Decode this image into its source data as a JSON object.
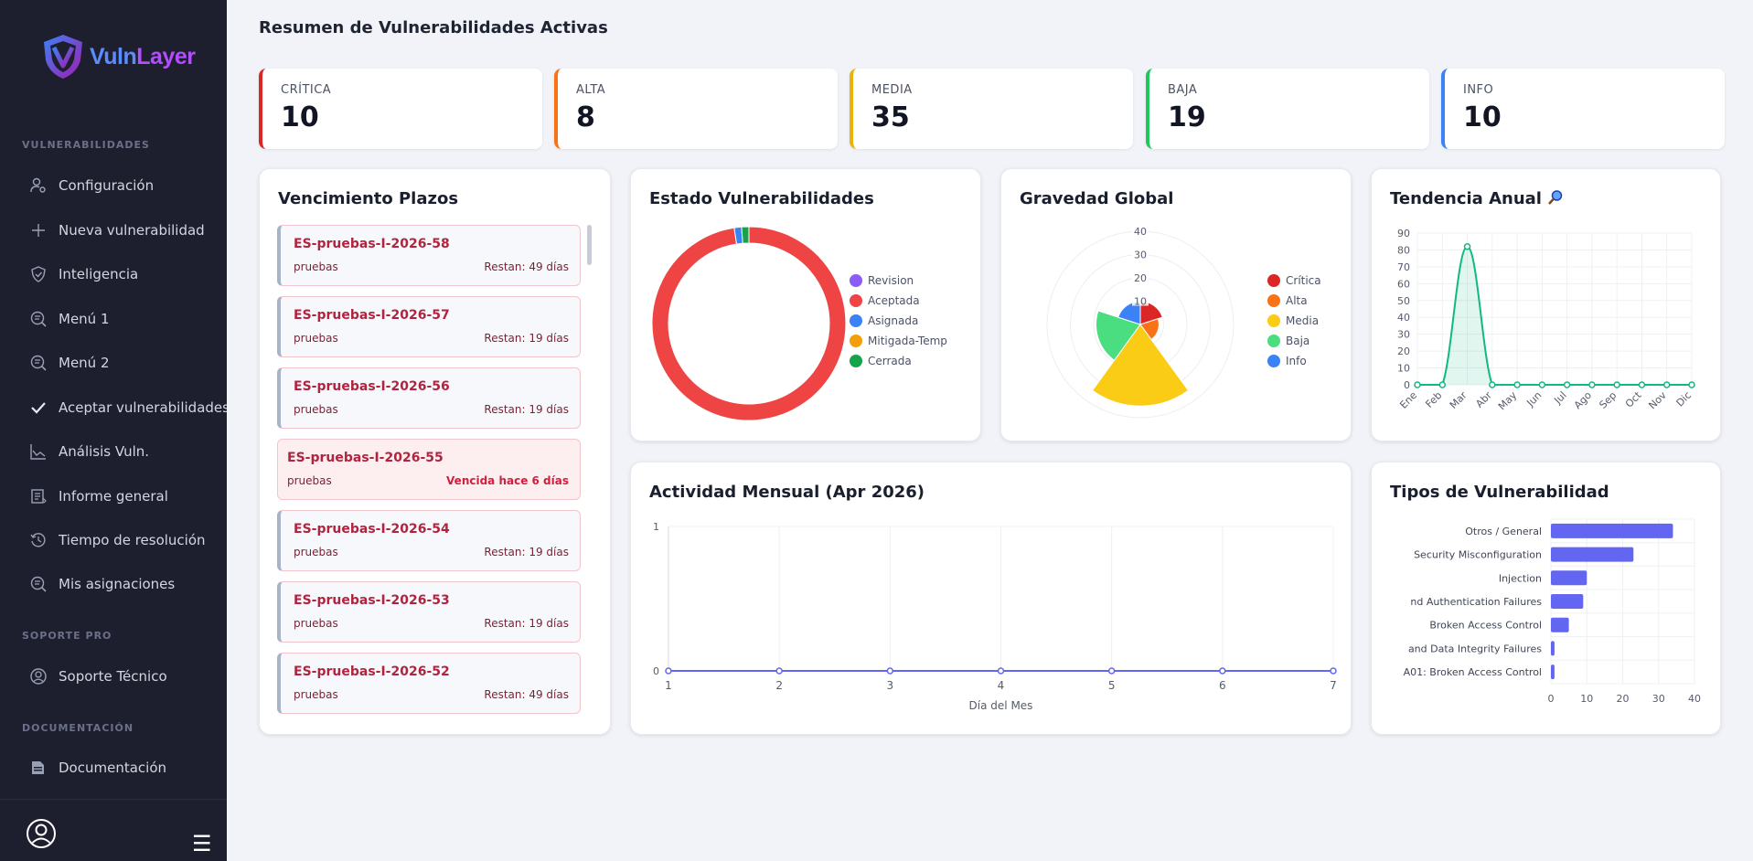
{
  "app": {
    "logo_part1": "Vuln",
    "logo_part2": "Layer"
  },
  "sidebar": {
    "sections": [
      {
        "label": "VULNERABILIDADES"
      },
      {
        "label": "SOPORTE PRO"
      },
      {
        "label": "DOCUMENTACIÓN"
      }
    ],
    "items": [
      {
        "label": "Configuración",
        "icon": "user-gear-icon"
      },
      {
        "label": "Nueva vulnerabilidad",
        "icon": "plus-icon"
      },
      {
        "label": "Inteligencia",
        "icon": "shield-check-icon"
      },
      {
        "label": "Menú 1",
        "icon": "search-doc-icon"
      },
      {
        "label": "Menú 2",
        "icon": "search-doc-icon"
      },
      {
        "label": "Aceptar vulnerabilidades",
        "icon": "check-icon"
      },
      {
        "label": "Análisis Vuln.",
        "icon": "chart-line-icon"
      },
      {
        "label": "Informe general",
        "icon": "report-icon"
      },
      {
        "label": "Tiempo de resolución",
        "icon": "history-icon"
      },
      {
        "label": "Mis asignaciones",
        "icon": "search-doc-icon"
      },
      {
        "label": "Soporte Técnico",
        "icon": "user-circle-icon"
      },
      {
        "label": "Documentación",
        "icon": "folder-icon"
      }
    ]
  },
  "main": {
    "title": "Resumen de Vulnerabilidades Activas",
    "stats": [
      {
        "label": "CRÍTICA",
        "value": "10",
        "color": "#dc2626"
      },
      {
        "label": "ALTA",
        "value": "8",
        "color": "#f97316"
      },
      {
        "label": "MEDIA",
        "value": "35",
        "color": "#eab308"
      },
      {
        "label": "BAJA",
        "value": "19",
        "color": "#22c55e"
      },
      {
        "label": "INFO",
        "value": "10",
        "color": "#3b82f6"
      }
    ]
  },
  "vencimiento": {
    "title": "Vencimiento Plazos",
    "items": [
      {
        "code": "ES-pruebas-I-2026-58",
        "project": "pruebas",
        "remaining": "Restan: 49 días",
        "overdue": false
      },
      {
        "code": "ES-pruebas-I-2026-57",
        "project": "pruebas",
        "remaining": "Restan: 19 días",
        "overdue": false
      },
      {
        "code": "ES-pruebas-I-2026-56",
        "project": "pruebas",
        "remaining": "Restan: 19 días",
        "overdue": false
      },
      {
        "code": "ES-pruebas-I-2026-55",
        "project": "pruebas",
        "remaining": "Vencida hace 6 días",
        "overdue": true
      },
      {
        "code": "ES-pruebas-I-2026-54",
        "project": "pruebas",
        "remaining": "Restan: 19 días",
        "overdue": false
      },
      {
        "code": "ES-pruebas-I-2026-53",
        "project": "pruebas",
        "remaining": "Restan: 19 días",
        "overdue": false
      },
      {
        "code": "ES-pruebas-I-2026-52",
        "project": "pruebas",
        "remaining": "Restan: 49 días",
        "overdue": false
      }
    ]
  },
  "chart_data": [
    {
      "type": "pie",
      "variant": "doughnut",
      "title": "Estado Vulnerabilidades",
      "categories": [
        "Revision",
        "Aceptada",
        "Asignada",
        "Mitigada-Temp",
        "Cerrada"
      ],
      "values": [
        0,
        80,
        1,
        0,
        1
      ],
      "colors": [
        "#8b5cf6",
        "#ef4444",
        "#3b82f6",
        "#f59e0b",
        "#16a34a"
      ],
      "legend": "right"
    },
    {
      "type": "pie",
      "variant": "polar-area",
      "title": "Gravedad Global",
      "categories": [
        "Crítica",
        "Alta",
        "Media",
        "Baja",
        "Info"
      ],
      "values": [
        10,
        8,
        35,
        19,
        10
      ],
      "colors": [
        "#dc2626",
        "#f97316",
        "#facc15",
        "#4ade80",
        "#3b82f6"
      ],
      "r_ticks": [
        "10",
        "20",
        "30",
        "40"
      ],
      "rmax": 40,
      "legend": "right"
    },
    {
      "type": "line",
      "title": "Tendencia Anual",
      "title_icon": "magnifier-icon",
      "categories": [
        "Ene",
        "Feb",
        "Mar",
        "Abr",
        "May",
        "Jun",
        "Jul",
        "Ago",
        "Sep",
        "Oct",
        "Nov",
        "Dic"
      ],
      "values": [
        0,
        0,
        82,
        0,
        0,
        0,
        0,
        0,
        0,
        0,
        0,
        0
      ],
      "ylim": [
        0,
        90
      ],
      "y_ticks": [
        "0",
        "10",
        "20",
        "30",
        "40",
        "50",
        "60",
        "70",
        "80",
        "90"
      ],
      "color": "#10b981",
      "fill": true,
      "grid": true
    },
    {
      "type": "line",
      "title": "Actividad Mensual (Apr 2026)",
      "x": [
        "1",
        "2",
        "3",
        "4",
        "5",
        "6",
        "7"
      ],
      "values": [
        0,
        0,
        0,
        0,
        0,
        0,
        0
      ],
      "ylim": [
        0,
        1
      ],
      "y_ticks": [
        "0",
        "1"
      ],
      "xlabel": "Día del Mes",
      "color": "#6366f1",
      "grid": true
    },
    {
      "type": "bar",
      "orientation": "horizontal",
      "title": "Tipos de Vulnerabilidad",
      "categories": [
        "Otros / General",
        "Security Misconfiguration",
        "Injection",
        "nd Authentication Failures",
        "Broken Access Control",
        "and Data Integrity Failures",
        "A01: Broken Access Control"
      ],
      "values": [
        34,
        23,
        10,
        9,
        5,
        1,
        1
      ],
      "xlim": [
        0,
        40
      ],
      "x_ticks": [
        "0",
        "10",
        "20",
        "30",
        "40"
      ],
      "color": "#6366f1",
      "grid": true
    }
  ]
}
